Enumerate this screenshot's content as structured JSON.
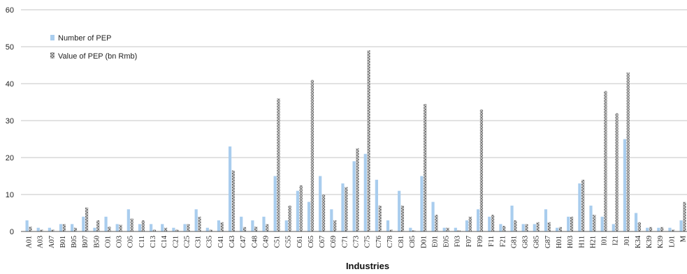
{
  "chart_data": {
    "type": "bar",
    "xlabel": "Industries",
    "ylabel": "",
    "ylim": [
      0,
      60
    ],
    "yticks": [
      0,
      10,
      20,
      30,
      40,
      50,
      60
    ],
    "grid": true,
    "legend": "top-left",
    "categories": [
      "A01",
      "A03",
      "A07",
      "B01",
      "B05",
      "B07",
      "B50",
      "C01",
      "C03",
      "C05",
      "C11",
      "C13",
      "C14",
      "C21",
      "C25",
      "C31",
      "C35",
      "C41",
      "C43",
      "C47",
      "C48",
      "C49",
      "C51",
      "C55",
      "C61",
      "C65",
      "C67",
      "C69",
      "C71",
      "C73",
      "C75",
      "C76",
      "C78",
      "C81",
      "C85",
      "D01",
      "E01",
      "E05",
      "F03",
      "F07",
      "F09",
      "F11",
      "F21",
      "G81",
      "G83",
      "G85",
      "G87",
      "H01",
      "H03",
      "H11",
      "H21",
      "I01",
      "I21",
      "J01",
      "K34",
      "K39",
      "K39",
      "L01",
      "M"
    ],
    "series": [
      {
        "name": "Number of PEP",
        "color": "#a9cdee",
        "values": [
          3,
          1,
          1,
          2,
          2,
          4,
          1,
          4,
          2,
          6,
          2,
          2,
          2,
          1,
          2,
          6,
          1,
          3,
          23,
          4,
          3,
          4,
          15,
          3,
          11,
          8,
          15,
          6,
          13,
          19,
          21,
          14,
          3,
          11,
          1,
          15,
          8,
          1,
          1,
          3,
          6,
          4,
          2,
          7,
          2,
          2,
          6,
          1,
          4,
          13,
          7,
          4,
          2,
          25,
          5,
          1,
          1,
          1,
          3
        ]
      },
      {
        "name": "Value of PEP (bn Rmb)",
        "color": "#8e8e8e",
        "values": [
          1.3,
          0.5,
          0.5,
          2,
          1,
          6.5,
          3,
          1.3,
          1.8,
          3.5,
          3,
          0.5,
          1,
          0.5,
          2,
          4,
          0.5,
          2.5,
          16.5,
          1.2,
          1.3,
          2,
          36,
          7,
          12.5,
          41,
          10,
          3,
          12,
          22.5,
          49,
          7,
          0.5,
          7,
          0.3,
          34.5,
          4.5,
          1,
          0.3,
          4,
          33,
          4.5,
          1.5,
          3,
          2,
          2.5,
          2.5,
          1.2,
          4,
          14,
          4.5,
          38,
          32,
          43,
          2.5,
          1.2,
          1.2,
          0.5,
          8
        ]
      }
    ]
  }
}
